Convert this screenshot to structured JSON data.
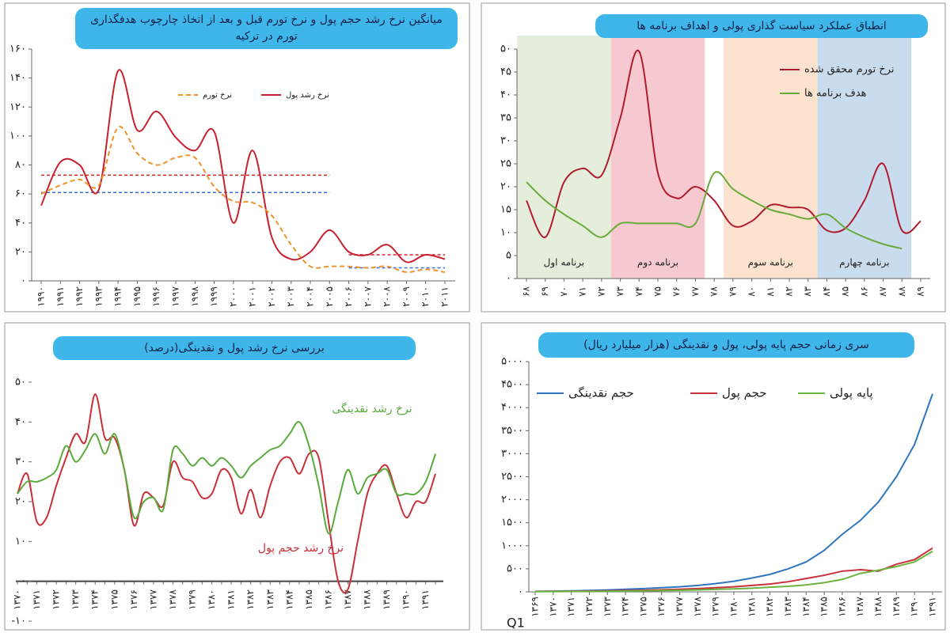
{
  "chart_data": [
    {
      "type": "line",
      "title": "میانگین نرخ رشد حجم پول و نرخ تورم قبل و بعد از اتخاذ چارچوب هدفگذاری تورم در ترکیه",
      "categories": [
        "۱۹۹۰",
        "۱۹۹۱",
        "۱۹۹۲",
        "۱۹۹۳",
        "۱۹۹۴",
        "۱۹۹۵",
        "۱۹۹۶",
        "۱۹۹۷",
        "۱۹۹۸",
        "۱۹۹۹",
        "۲۰۰۰",
        "۲۰۰۱",
        "۲۰۰۲",
        "۲۰۰۳",
        "۲۰۰۴",
        "۲۰۰۵",
        "۲۰۰۶",
        "۲۰۰۷",
        "۲۰۰۸",
        "۲۰۰۹",
        "۲۰۱۰",
        "۲۰۱۱"
      ],
      "series": [
        {
          "name": "نرخ رشد پول",
          "color": "#c8202f",
          "line_style": "solid",
          "values": [
            52,
            82,
            80,
            63,
            145,
            104,
            117,
            99,
            90,
            103,
            40,
            90,
            30,
            15,
            20,
            35,
            20,
            18,
            25,
            13,
            18,
            15
          ]
        },
        {
          "name": "نرخ تورم",
          "color": "#f0922b",
          "line_style": "dashed",
          "values": [
            60,
            66,
            70,
            66,
            106,
            88,
            80,
            85,
            85,
            65,
            55,
            54,
            45,
            25,
            10,
            10,
            10,
            9,
            10,
            6,
            8,
            6
          ]
        }
      ],
      "reference_lines": [
        {
          "value": 73,
          "color": "#d2232f",
          "from": "۱۹۹۰",
          "to": "۲۰۰۵"
        },
        {
          "value": 61,
          "color": "#3a6fd8",
          "from": "۱۹۹۰",
          "to": "۲۰۰۵"
        },
        {
          "value": 18,
          "color": "#d2232f",
          "from": "۲۰۰۶",
          "to": "۲۰۱۱"
        },
        {
          "value": 9,
          "color": "#3a6fd8",
          "from": "۲۰۰۶",
          "to": "۲۰۱۱"
        }
      ],
      "ylim": [
        0,
        160
      ],
      "yticks": [
        {
          "value": 0,
          "label": "۰"
        },
        {
          "value": 20,
          "label": "۲۰"
        },
        {
          "value": 40,
          "label": "۴۰"
        },
        {
          "value": 60,
          "label": "۶۰"
        },
        {
          "value": 80,
          "label": "۸۰"
        },
        {
          "value": 100,
          "label": "۱۰۰"
        },
        {
          "value": 120,
          "label": "۱۲۰"
        },
        {
          "value": 140,
          "label": "۱۴۰"
        },
        {
          "value": 160,
          "label": "۱۶۰"
        }
      ],
      "grid": false,
      "legend": "top"
    },
    {
      "type": "line",
      "title": "انطباق عملکرد سیاست گذاری پولی و اهداف برنامه ها",
      "categories": [
        "۶۸",
        "۶۹",
        "۷۰",
        "۷۱",
        "۷۲",
        "۷۳",
        "۷۴",
        "۷۵",
        "۷۶",
        "۷۷",
        "۷۸",
        "۷۹",
        "۸۰",
        "۸۱",
        "۸۲",
        "۸۳",
        "۸۴",
        "۸۵",
        "۸۶",
        "۸۷",
        "۸۸",
        "۸۹"
      ],
      "series": [
        {
          "name": "نرخ تورم محقق شده",
          "color": "#b01c2e",
          "line_style": "solid",
          "values": [
            17,
            9,
            21,
            24,
            22.5,
            35,
            49.5,
            23,
            17.5,
            20,
            17,
            11.5,
            12.5,
            16,
            15.5,
            15,
            10.5,
            11,
            17,
            25,
            10.5,
            12.5
          ]
        },
        {
          "name": "هدف برنامه ها",
          "color": "#6aaa3a",
          "line_style": "solid",
          "values": [
            21,
            17,
            14,
            11.5,
            9,
            12,
            12,
            12,
            12,
            12,
            23,
            19.5,
            17,
            15,
            14,
            13,
            14,
            11,
            9,
            7.5,
            6.5,
            null
          ]
        }
      ],
      "bands": [
        {
          "label": "برنامه اول",
          "color": "#e4eedb",
          "from": "۶۸",
          "to": "۷۲"
        },
        {
          "label": "برنامه دوم",
          "color": "#f5c9cf",
          "from": "۷۳",
          "to": "۷۷"
        },
        {
          "label": "برنامه سوم",
          "color": "#fde3cf",
          "from": "۷۹",
          "to": "۸۳"
        },
        {
          "label": "برنامه چهارم",
          "color": "#c9dced",
          "from": "۸۴",
          "to": "۸۸"
        }
      ],
      "ylim": [
        0,
        50
      ],
      "yticks": [
        {
          "value": 0,
          "label": "۰"
        },
        {
          "value": 5,
          "label": "۵"
        },
        {
          "value": 10,
          "label": "۱۰"
        },
        {
          "value": 15,
          "label": "۱۵"
        },
        {
          "value": 20,
          "label": "۲۰"
        },
        {
          "value": 25,
          "label": "۲۵"
        },
        {
          "value": 30,
          "label": "۳۰"
        },
        {
          "value": 35,
          "label": "۳۵"
        },
        {
          "value": 40,
          "label": "۴۰"
        },
        {
          "value": 45,
          "label": "۴۵"
        },
        {
          "value": 50,
          "label": "۵۰"
        }
      ],
      "grid": false,
      "legend": "top-right"
    },
    {
      "type": "line",
      "title": "بررسی نرخ رشد پول و نقدینگی(درصد)",
      "categories": [
        "۱۳۷۰",
        null,
        "۱۳۷۱",
        null,
        "۱۳۷۲",
        null,
        "۱۳۷۳",
        null,
        "۱۳۷۴",
        null,
        "۱۳۷۵",
        null,
        "۱۳۷۶",
        null,
        "۱۳۷۷",
        null,
        "۱۳۷۸",
        null,
        "۱۳۷۹",
        null,
        "۱۳۸۰",
        null,
        "۱۳۸۱",
        null,
        "۱۳۸۲",
        null,
        "۱۳۸۳",
        null,
        "۱۳۸۴",
        null,
        "۱۳۸۵",
        null,
        "۱۳۸۶",
        null,
        "۱۳۸۷",
        null,
        "۱۳۸۸",
        null,
        "۱۳۸۹",
        null,
        "۱۳۹۰",
        null,
        "۱۳۹۱",
        null
      ],
      "series": [
        {
          "name": "نرخ رشد حجم پول",
          "color": "#c8303a",
          "line_style": "solid",
          "values": [
            22,
            27,
            15,
            16,
            24,
            31,
            37,
            35,
            47,
            36,
            36,
            28,
            14,
            22,
            21,
            19,
            30,
            26,
            25,
            21,
            22,
            28,
            26,
            17,
            23,
            16,
            24,
            30,
            31,
            27,
            32,
            31,
            15,
            0,
            -2,
            10,
            22,
            27,
            29,
            22,
            16,
            20,
            20,
            27
          ]
        },
        {
          "name": "نرخ رشد نقدینگی",
          "color": "#5aaa3c",
          "line_style": "solid",
          "values": [
            22,
            25,
            25,
            26,
            28,
            34,
            30,
            33,
            37,
            32,
            37,
            28,
            16,
            20,
            21,
            18,
            33,
            32,
            29,
            31,
            29,
            31,
            29,
            26,
            29,
            31,
            33,
            34,
            37,
            40,
            34,
            24,
            12,
            20,
            28,
            22,
            26,
            27,
            28,
            22,
            22,
            22,
            25,
            32
          ]
        }
      ],
      "ylim": [
        -10,
        50
      ],
      "yticks": [
        {
          "value": -10,
          "label": "-۱۰"
        },
        {
          "value": 0,
          "label": "۰"
        },
        {
          "value": 10,
          "label": "۱۰"
        },
        {
          "value": 20,
          "label": "۲۰"
        },
        {
          "value": 30,
          "label": "۳۰"
        },
        {
          "value": 40,
          "label": "۴۰"
        },
        {
          "value": 50,
          "label": "۵۰"
        }
      ],
      "grid": false,
      "zero_line": true,
      "legend": "inline"
    },
    {
      "type": "line",
      "title": "سری زمانی حجم پایه پولی، پول و نقدینگی (هزار میلیارد ریال)",
      "xlabel": "Q1",
      "categories": [
        "۱۳۶۹",
        "۱۳۷۰",
        "۱۳۷۱",
        "۱۳۷۲",
        "۱۳۷۳",
        "۱۳۷۴",
        "۱۳۷۵",
        "۱۳۷۶",
        "۱۳۷۷",
        "۱۳۷۸",
        "۱۳۷۹",
        "۱۳۸۰",
        "۱۳۸۱",
        "۱۳۸۲",
        "۱۳۸۳",
        "۱۳۸۴",
        "۱۳۸۵",
        "۱۳۸۶",
        "۱۳۸۷",
        "۱۳۸۸",
        "۱۳۸۹",
        "۱۳۹۰",
        "۱۳۹۱"
      ],
      "series": [
        {
          "name": "حجم نقدینگی",
          "color": "#2f75c0",
          "line_style": "solid",
          "values": [
            10,
            15,
            22,
            30,
            40,
            55,
            70,
            90,
            110,
            140,
            180,
            230,
            300,
            380,
            500,
            650,
            900,
            1250,
            1550,
            1950,
            2500,
            3200,
            4300
          ]
        },
        {
          "name": "حجم پول",
          "color": "#c8303a",
          "line_style": "solid",
          "values": [
            8,
            10,
            13,
            17,
            22,
            28,
            35,
            45,
            55,
            70,
            90,
            110,
            140,
            170,
            220,
            290,
            360,
            450,
            480,
            450,
            600,
            700,
            950
          ]
        },
        {
          "name": "پایه پولی",
          "color": "#6db33f",
          "line_style": "solid",
          "values": [
            4,
            6,
            8,
            10,
            13,
            17,
            22,
            28,
            35,
            43,
            55,
            65,
            80,
            100,
            120,
            150,
            200,
            270,
            400,
            470,
            550,
            650,
            880
          ]
        }
      ],
      "ylim": [
        0,
        5000
      ],
      "yticks": [
        {
          "value": 0,
          "label": "۰"
        },
        {
          "value": 500,
          "label": "۵۰۰"
        },
        {
          "value": 1000,
          "label": "۱۰۰۰"
        },
        {
          "value": 1500,
          "label": "۱۵۰۰"
        },
        {
          "value": 2000,
          "label": "۲۰۰۰"
        },
        {
          "value": 2500,
          "label": "۲۵۰۰"
        },
        {
          "value": 3000,
          "label": "۳۰۰۰"
        },
        {
          "value": 3500,
          "label": "۳۵۰۰"
        },
        {
          "value": 4000,
          "label": "۴۰۰۰"
        },
        {
          "value": 4500,
          "label": "۴۵۰۰"
        },
        {
          "value": 5000,
          "label": "۵۰۰۰"
        }
      ],
      "grid": false,
      "legend": "top-left"
    }
  ]
}
